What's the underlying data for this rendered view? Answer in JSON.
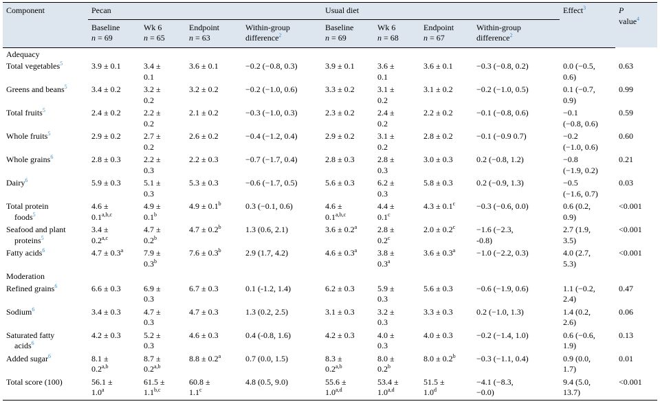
{
  "header": {
    "component": "Component",
    "group_pecan": "Pecan",
    "group_usual": "Usual diet",
    "effect": "Effect",
    "effect_note": "3",
    "p_value_p": "P",
    "p_value_word": "value",
    "p_value_note": "4",
    "sub": {
      "baseline": "Baseline",
      "wk6": "Wk 6",
      "endpoint": "Endpoint",
      "within1": "Within-group",
      "within2": "difference",
      "within_note": "2",
      "n_eq": "n",
      "pecan_n": [
        "= 69",
        "= 65",
        "= 63"
      ],
      "usual_n": [
        "= 69",
        "= 68",
        "= 67"
      ]
    }
  },
  "sections": {
    "adequacy": "Adequacy",
    "moderation": "Moderation"
  },
  "rows": [
    {
      "name1": "Total vegetables",
      "name2": "",
      "note": "5",
      "c": [
        [
          "3.9 ± 0.1",
          ""
        ],
        [
          "3.4 ±",
          "0.1"
        ],
        [
          "3.6 ± 0.1",
          ""
        ],
        [
          "−0.2 (−0.8, 0.3)",
          ""
        ],
        [
          "3.9 ± 0.1",
          ""
        ],
        [
          "3.6 ±",
          "0.1"
        ],
        [
          "3.6 ± 0.1",
          ""
        ],
        [
          "−0.3 (−0.8, 0.2)",
          ""
        ],
        [
          "0.0 (−0.5,",
          "0.6)"
        ],
        [
          "0.63",
          ""
        ]
      ],
      "s": [
        [
          "",
          ""
        ],
        [
          "",
          ""
        ],
        [
          "",
          ""
        ],
        [
          "",
          ""
        ],
        [
          "",
          ""
        ],
        [
          "",
          ""
        ],
        [
          "",
          ""
        ],
        [
          "",
          ""
        ],
        [
          "",
          ""
        ],
        [
          "",
          ""
        ]
      ]
    },
    {
      "name1": "Greens and beans",
      "name2": "",
      "note": "5",
      "c": [
        [
          "3.4 ± 0.2",
          ""
        ],
        [
          "3.2 ±",
          "0.2"
        ],
        [
          "3.2 ± 0.2",
          ""
        ],
        [
          "−0.2 (−1.0, 0.6)",
          ""
        ],
        [
          "3.3 ± 0.2",
          ""
        ],
        [
          "3.1 ±",
          "0.2"
        ],
        [
          "3.1 ± 0.2",
          ""
        ],
        [
          "−0.2 (−1.0, 0.5)",
          ""
        ],
        [
          "0.1 (−0.7,",
          "0.9)"
        ],
        [
          "0.99",
          ""
        ]
      ],
      "s": [
        [
          "",
          ""
        ],
        [
          "",
          ""
        ],
        [
          "",
          ""
        ],
        [
          "",
          ""
        ],
        [
          "",
          ""
        ],
        [
          "",
          ""
        ],
        [
          "",
          ""
        ],
        [
          "",
          ""
        ],
        [
          "",
          ""
        ],
        [
          "",
          ""
        ]
      ]
    },
    {
      "name1": "Total fruits",
      "name2": "",
      "note": "5",
      "c": [
        [
          "2.4 ± 0.2",
          ""
        ],
        [
          "2.2 ±",
          "0.2"
        ],
        [
          "2.1 ± 0.2",
          ""
        ],
        [
          "−0.3 (−1.0, 0.3)",
          ""
        ],
        [
          "2.3 ± 0.2",
          ""
        ],
        [
          "2.4 ±",
          "0.2"
        ],
        [
          "2.2 ± 0.2",
          ""
        ],
        [
          "−0.1 (−0.8, 0.6)",
          ""
        ],
        [
          "−0.1",
          "(−0.8, 0.6)"
        ],
        [
          "0.59",
          ""
        ]
      ],
      "s": [
        [
          "",
          ""
        ],
        [
          "",
          ""
        ],
        [
          "",
          ""
        ],
        [
          "",
          ""
        ],
        [
          "",
          ""
        ],
        [
          "",
          ""
        ],
        [
          "",
          ""
        ],
        [
          "",
          ""
        ],
        [
          "",
          ""
        ],
        [
          "",
          ""
        ]
      ]
    },
    {
      "name1": "Whole fruits",
      "name2": "",
      "note": "5",
      "c": [
        [
          "2.9 ± 0.2",
          ""
        ],
        [
          "2.7 ±",
          "0.2"
        ],
        [
          "2.6 ± 0.2",
          ""
        ],
        [
          "−0.4 (−1.2, 0.4)",
          ""
        ],
        [
          "2.9 ± 0.2",
          ""
        ],
        [
          "3.1 ±",
          "0.2"
        ],
        [
          "2.8 ± 0.2",
          ""
        ],
        [
          "−0.1 (−0.9 0.7)",
          ""
        ],
        [
          "−0.2",
          "(−1.0, 0.6)"
        ],
        [
          "0.60",
          ""
        ]
      ],
      "s": [
        [
          "",
          ""
        ],
        [
          "",
          ""
        ],
        [
          "",
          ""
        ],
        [
          "",
          ""
        ],
        [
          "",
          ""
        ],
        [
          "",
          ""
        ],
        [
          "",
          ""
        ],
        [
          "",
          ""
        ],
        [
          "",
          ""
        ],
        [
          "",
          ""
        ]
      ]
    },
    {
      "name1": "Whole grains",
      "name2": "",
      "note": "6",
      "c": [
        [
          "2.8 ± 0.3",
          ""
        ],
        [
          "2.2 ±",
          "0.3"
        ],
        [
          "2.2 ± 0.3",
          ""
        ],
        [
          "−0.7 (−1.7, 0.4)",
          ""
        ],
        [
          "2.8 ± 0.3",
          ""
        ],
        [
          "2.8 ±",
          "0.3"
        ],
        [
          "3.0 ± 0.3",
          ""
        ],
        [
          "0.2 (−0.8, 1.2)",
          ""
        ],
        [
          "−0.8",
          "(−1.9, 0.2)"
        ],
        [
          "0.21",
          ""
        ]
      ],
      "s": [
        [
          "",
          ""
        ],
        [
          "",
          ""
        ],
        [
          "",
          ""
        ],
        [
          "",
          ""
        ],
        [
          "",
          ""
        ],
        [
          "",
          ""
        ],
        [
          "",
          ""
        ],
        [
          "",
          ""
        ],
        [
          "",
          ""
        ],
        [
          "",
          ""
        ]
      ]
    },
    {
      "name1": "Dairy",
      "name2": "",
      "note": "6",
      "c": [
        [
          "5.9 ± 0.3",
          ""
        ],
        [
          "5.1 ±",
          "0.3"
        ],
        [
          "5.3 ± 0.3",
          ""
        ],
        [
          "−0.6 (−1.7, 0.5)",
          ""
        ],
        [
          "5.6 ± 0.3",
          ""
        ],
        [
          "6.2 ±",
          "0.3"
        ],
        [
          "5.8 ± 0.3",
          ""
        ],
        [
          "0.2 (−0.9, 1.3)",
          ""
        ],
        [
          "−0.5",
          "(−1.6, 0.7)"
        ],
        [
          "0.03",
          ""
        ]
      ],
      "s": [
        [
          "",
          ""
        ],
        [
          "",
          ""
        ],
        [
          "",
          ""
        ],
        [
          "",
          ""
        ],
        [
          "",
          ""
        ],
        [
          "",
          ""
        ],
        [
          "",
          ""
        ],
        [
          "",
          ""
        ],
        [
          "",
          ""
        ],
        [
          "",
          ""
        ]
      ]
    },
    {
      "name1": "Total protein",
      "name2": "foods",
      "note": "5",
      "c": [
        [
          "4.6 ±",
          "0.1"
        ],
        [
          "4.9 ±",
          "0.1"
        ],
        [
          "4.9 ± 0.1",
          ""
        ],
        [
          "0.3 (−0.1, 0.6)",
          ""
        ],
        [
          "4.6 ±",
          "0.1"
        ],
        [
          "4.4 ±",
          "0.1"
        ],
        [
          "4.3 ± 0.1",
          ""
        ],
        [
          "−0.3 (−0.6, 0.0)",
          ""
        ],
        [
          "0.6 (0.2,",
          "0.9)"
        ],
        [
          "<0.001",
          ""
        ]
      ],
      "s": [
        [
          "",
          "a,b,c"
        ],
        [
          "",
          "b"
        ],
        [
          "b",
          ""
        ],
        [
          "",
          ""
        ],
        [
          "",
          "a,b,c"
        ],
        [
          "",
          "c"
        ],
        [
          "c",
          ""
        ],
        [
          "",
          ""
        ],
        [
          "",
          ""
        ],
        [
          "",
          ""
        ]
      ]
    },
    {
      "name1": "Seafood and plant",
      "name2": "proteins",
      "note": "5",
      "c": [
        [
          "3.4 ±",
          "0.2"
        ],
        [
          "4.7 ±",
          "0.2"
        ],
        [
          "4.7 ± 0.2",
          ""
        ],
        [
          "1.3 (0.6, 2.1)",
          ""
        ],
        [
          "3.6 ± 0.2",
          ""
        ],
        [
          "2.8 ±",
          "0.2"
        ],
        [
          "2.0 ± 0.2",
          ""
        ],
        [
          "−1.6 (−2.3,",
          "-0.8)"
        ],
        [
          "2.7 (1.9,",
          "3.5)"
        ],
        [
          "<0.001",
          ""
        ]
      ],
      "s": [
        [
          "",
          "a,c"
        ],
        [
          "",
          "b"
        ],
        [
          "b",
          ""
        ],
        [
          "",
          ""
        ],
        [
          "a",
          ""
        ],
        [
          "",
          "c"
        ],
        [
          "c",
          ""
        ],
        [
          "",
          ""
        ],
        [
          "",
          ""
        ],
        [
          "",
          ""
        ]
      ]
    },
    {
      "name1": "Fatty acids",
      "name2": "",
      "note": "6",
      "c": [
        [
          "4.7 ± 0.3",
          ""
        ],
        [
          "7.9 ±",
          "0.3"
        ],
        [
          "7.6 ± 0.3",
          ""
        ],
        [
          "2.9 (1.7, 4.2)",
          ""
        ],
        [
          "4.6 ± 0.3",
          ""
        ],
        [
          "3.8 ±",
          "0.3"
        ],
        [
          "3.6 ± 0.3",
          ""
        ],
        [
          "−1.0 (−2.2, 0.3)",
          ""
        ],
        [
          "4.0 (2.7,",
          "5.3)"
        ],
        [
          "<0.001",
          ""
        ]
      ],
      "s": [
        [
          "a",
          ""
        ],
        [
          "",
          "b"
        ],
        [
          "b",
          ""
        ],
        [
          "",
          ""
        ],
        [
          "a",
          ""
        ],
        [
          "",
          "a"
        ],
        [
          "a",
          ""
        ],
        [
          "",
          ""
        ],
        [
          "",
          ""
        ],
        [
          "",
          ""
        ]
      ]
    },
    {
      "section": "moderation"
    },
    {
      "name1": "Refined grains",
      "name2": "",
      "note": "6",
      "c": [
        [
          "6.6 ± 0.3",
          ""
        ],
        [
          "6.9 ±",
          "0.3"
        ],
        [
          "6.7 ± 0.3",
          ""
        ],
        [
          "0.1 (-1.2, 1.4)",
          ""
        ],
        [
          "6.2 ± 0.3",
          ""
        ],
        [
          "5.9 ±",
          "0.3"
        ],
        [
          "5.6 ± 0.3",
          ""
        ],
        [
          "−0.6 (−1.9, 0.6)",
          ""
        ],
        [
          "1.1 (−0.2,",
          "2.4)"
        ],
        [
          "0.47",
          ""
        ]
      ],
      "s": [
        [
          "",
          ""
        ],
        [
          "",
          ""
        ],
        [
          "",
          ""
        ],
        [
          "",
          ""
        ],
        [
          "",
          ""
        ],
        [
          "",
          ""
        ],
        [
          "",
          ""
        ],
        [
          "",
          ""
        ],
        [
          "",
          ""
        ],
        [
          "",
          ""
        ]
      ]
    },
    {
      "name1": "Sodium",
      "name2": "",
      "note": "6",
      "c": [
        [
          "3.4 ± 0.3",
          ""
        ],
        [
          "4.7 ±",
          "0.3"
        ],
        [
          "4.7 ± 0.3",
          ""
        ],
        [
          "1.3 (0.2, 2.5)",
          ""
        ],
        [
          "3.1 ± 0.3",
          ""
        ],
        [
          "3.2 ±",
          "0.3"
        ],
        [
          "3.3 ± 0.3",
          ""
        ],
        [
          "0.2 (−1.0, 1.3)",
          ""
        ],
        [
          "1.4 (0.2,",
          "2.6)"
        ],
        [
          "0.06",
          ""
        ]
      ],
      "s": [
        [
          "",
          ""
        ],
        [
          "",
          ""
        ],
        [
          "",
          ""
        ],
        [
          "",
          ""
        ],
        [
          "",
          ""
        ],
        [
          "",
          ""
        ],
        [
          "",
          ""
        ],
        [
          "",
          ""
        ],
        [
          "",
          ""
        ],
        [
          "",
          ""
        ]
      ]
    },
    {
      "name1": "Saturated fatty",
      "name2": "acids",
      "note": "6",
      "c": [
        [
          "4.2 ± 0.3",
          ""
        ],
        [
          "5.2 ±",
          "0.3"
        ],
        [
          "4.6 ± 0.3",
          ""
        ],
        [
          "0.4 (-0.8, 1.6)",
          ""
        ],
        [
          "4.2 ± 0.3",
          ""
        ],
        [
          "4.0 ±",
          "0.3"
        ],
        [
          "4.0 ± 0.3",
          ""
        ],
        [
          "−0.2 (−1.4, 1.0)",
          ""
        ],
        [
          "0.6 (−0.6,",
          "1.9)"
        ],
        [
          "0.13",
          ""
        ]
      ],
      "s": [
        [
          "",
          ""
        ],
        [
          "",
          ""
        ],
        [
          "",
          ""
        ],
        [
          "",
          ""
        ],
        [
          "",
          ""
        ],
        [
          "",
          ""
        ],
        [
          "",
          ""
        ],
        [
          "",
          ""
        ],
        [
          "",
          ""
        ],
        [
          "",
          ""
        ]
      ]
    },
    {
      "name1": "Added sugar",
      "name2": "",
      "note": "6",
      "c": [
        [
          "8.1 ±",
          "0.2"
        ],
        [
          "8.7 ±",
          "0.2"
        ],
        [
          "8.8 ± 0.2",
          ""
        ],
        [
          "0.7 (0.0, 1.5)",
          ""
        ],
        [
          "8.3 ±",
          "0.2"
        ],
        [
          "8.0 ±",
          "0.2"
        ],
        [
          "8.0 ± 0.2",
          ""
        ],
        [
          "−0.3 (−1.1, 0.4)",
          ""
        ],
        [
          "0.9 (0.0,",
          "1.7)"
        ],
        [
          "0.01",
          ""
        ]
      ],
      "s": [
        [
          "",
          "a,b"
        ],
        [
          "",
          "a,b"
        ],
        [
          "a",
          ""
        ],
        [
          "",
          ""
        ],
        [
          "",
          "a,b"
        ],
        [
          "",
          "b"
        ],
        [
          "b",
          ""
        ],
        [
          "",
          ""
        ],
        [
          "",
          ""
        ],
        [
          "",
          ""
        ]
      ]
    },
    {
      "name1": "Total score (100)",
      "name2": "",
      "note": "",
      "c": [
        [
          "56.1 ±",
          "1.0"
        ],
        [
          "61.5 ±",
          "1.1"
        ],
        [
          "60.8 ±",
          "1.1"
        ],
        [
          "4.8 (0.5, 9.0)",
          ""
        ],
        [
          "55.6 ±",
          "1.0"
        ],
        [
          "53.4 ±",
          "1.0"
        ],
        [
          "51.5 ±",
          "1.0"
        ],
        [
          "−4.1 (−8.3,",
          "−0.0)"
        ],
        [
          "9.4 (5.0,",
          "13.7)"
        ],
        [
          "<0.001",
          ""
        ]
      ],
      "s": [
        [
          "",
          "a"
        ],
        [
          "",
          "b,c"
        ],
        [
          "",
          "c"
        ],
        [
          "",
          ""
        ],
        [
          "",
          "a,d"
        ],
        [
          "",
          "a,d"
        ],
        [
          "",
          "d"
        ],
        [
          "",
          ""
        ],
        [
          "",
          ""
        ],
        [
          "",
          ""
        ]
      ]
    }
  ]
}
